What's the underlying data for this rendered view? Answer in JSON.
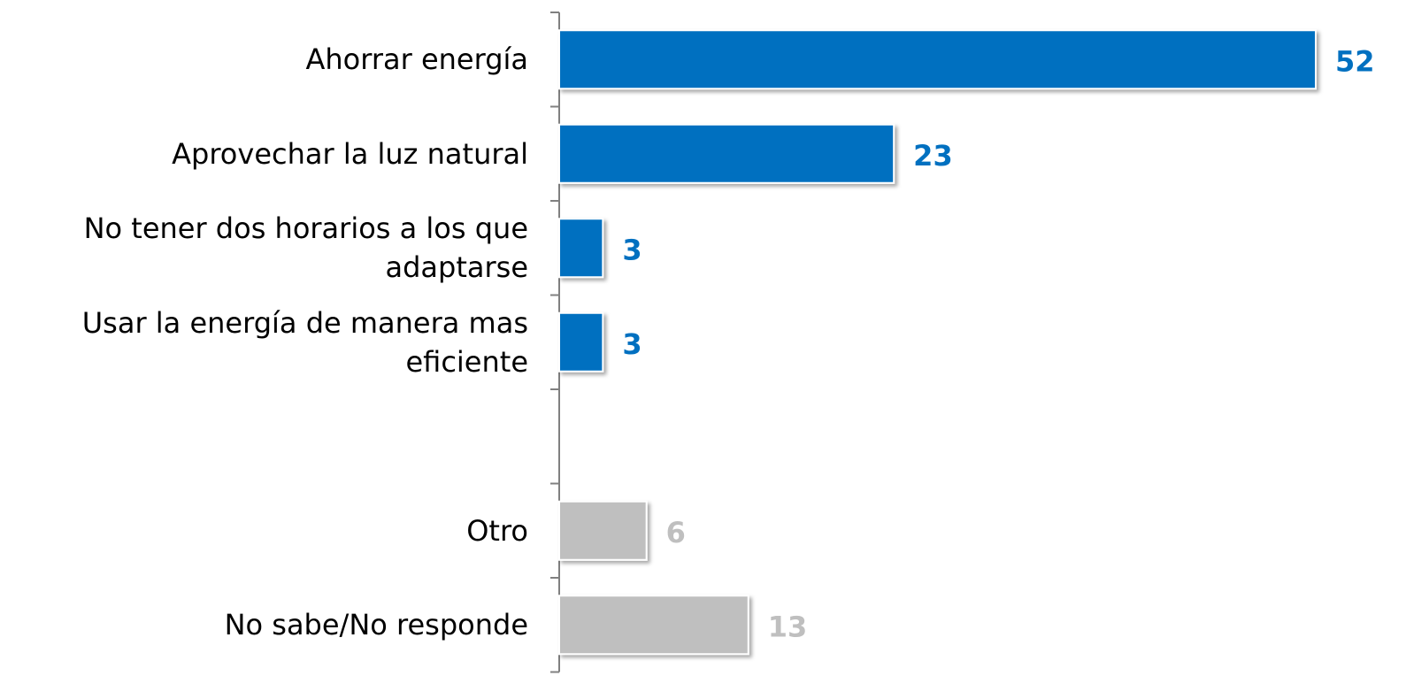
{
  "chart_data": {
    "type": "bar",
    "orientation": "horizontal",
    "categories": [
      "Ahorrar energía",
      "Aprovechar la luz natural",
      "No tener dos horarios a los que adaptarse",
      "Usar la energía de manera mas eficiente",
      null,
      "Otro",
      "No sabe/No responde"
    ],
    "values": [
      52,
      23,
      3,
      3,
      null,
      6,
      13
    ],
    "colors": [
      "#0070c0",
      "#0070c0",
      "#0070c0",
      "#0070c0",
      null,
      "#bfbfbf",
      "#bfbfbf"
    ]
  }
}
